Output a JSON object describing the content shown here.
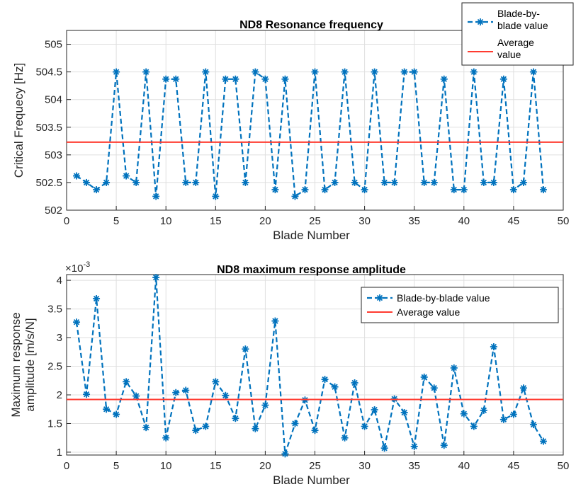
{
  "colors": {
    "series": "#0072BD",
    "average": "#FF3B30",
    "grid": "#DFDFDF",
    "axis": "#262626"
  },
  "chart_data": [
    {
      "type": "line",
      "title": "ND8 Resonance frequency",
      "xlabel": "Blade Number",
      "ylabel": "Critical Frequecy [Hz]",
      "xlim": [
        0,
        50
      ],
      "ylim": [
        502,
        505.25
      ],
      "xticks": [
        0,
        5,
        10,
        15,
        20,
        25,
        30,
        35,
        40,
        45,
        50
      ],
      "yticks": [
        502,
        502.5,
        503,
        503.5,
        504,
        504.5,
        505
      ],
      "xtick_labels": [
        "0",
        "5",
        "10",
        "15",
        "20",
        "25",
        "30",
        "35",
        "40",
        "45",
        "50"
      ],
      "ytick_labels": [
        "502",
        "502.5",
        "503",
        "503.5",
        "504",
        "504.5",
        "505"
      ],
      "grid": true,
      "legend_position": "top-right, outside",
      "legend": [
        "Blade-by-blade value",
        "Average value"
      ],
      "legend_lines": [
        [
          "Blade-by-",
          "blade value"
        ],
        [
          "Average",
          "value"
        ]
      ],
      "series": [
        {
          "name": "Blade-by-blade value",
          "style": "dashed line with asterisk markers",
          "x": [
            1,
            2,
            3,
            4,
            5,
            6,
            7,
            8,
            9,
            10,
            11,
            12,
            13,
            14,
            15,
            16,
            17,
            18,
            19,
            20,
            21,
            22,
            23,
            24,
            25,
            26,
            27,
            28,
            29,
            30,
            31,
            32,
            33,
            34,
            35,
            36,
            37,
            38,
            39,
            40,
            41,
            42,
            43,
            44,
            45,
            46,
            47,
            48
          ],
          "values": [
            502.62,
            502.5,
            502.37,
            502.5,
            504.5,
            502.62,
            502.5,
            504.5,
            502.25,
            504.37,
            504.37,
            502.5,
            502.5,
            504.5,
            502.25,
            504.37,
            504.37,
            502.5,
            504.5,
            504.37,
            502.37,
            504.37,
            502.25,
            502.37,
            504.5,
            502.37,
            502.5,
            504.5,
            502.5,
            502.37,
            504.5,
            502.5,
            502.5,
            504.5,
            504.5,
            502.5,
            502.5,
            504.37,
            502.37,
            502.37,
            504.5,
            502.5,
            502.5,
            504.37,
            502.37,
            502.5,
            504.5,
            502.37
          ]
        },
        {
          "name": "Average value",
          "style": "solid horizontal line",
          "value": 503.23
        }
      ]
    },
    {
      "type": "line",
      "title": "ND8 maximum response amplitude",
      "xlabel": "Blade Number",
      "ylabel": "Maximum response amplitude [m/s/N]",
      "ylabel_lines": [
        "Maximum response",
        "amplitude [m/s/N]"
      ],
      "exponent_label": "×10",
      "exponent_power": "-3",
      "xlim": [
        0,
        50
      ],
      "ylim": [
        0.95,
        4.1
      ],
      "xticks": [
        0,
        5,
        10,
        15,
        20,
        25,
        30,
        35,
        40,
        45,
        50
      ],
      "yticks": [
        1,
        1.5,
        2,
        2.5,
        3,
        3.5,
        4
      ],
      "xtick_labels": [
        "0",
        "5",
        "10",
        "15",
        "20",
        "25",
        "30",
        "35",
        "40",
        "45",
        "50"
      ],
      "ytick_labels": [
        "1",
        "1.5",
        "2",
        "2.5",
        "3",
        "3.5",
        "4"
      ],
      "grid": true,
      "legend_position": "top-right, inside",
      "legend": [
        "Blade-by-blade value",
        "Average value"
      ],
      "series": [
        {
          "name": "Blade-by-blade value",
          "style": "dashed line with asterisk markers",
          "x": [
            1,
            2,
            3,
            4,
            5,
            6,
            7,
            8,
            9,
            10,
            11,
            12,
            13,
            14,
            15,
            16,
            17,
            18,
            19,
            20,
            21,
            22,
            23,
            24,
            25,
            26,
            27,
            28,
            29,
            30,
            31,
            32,
            33,
            34,
            35,
            36,
            37,
            38,
            39,
            40,
            41,
            42,
            43,
            44,
            45,
            46,
            47,
            48
          ],
          "values": [
            3.27,
            2.01,
            3.68,
            1.75,
            1.66,
            2.23,
            1.98,
            1.43,
            4.05,
            1.25,
            2.04,
            2.08,
            1.38,
            1.45,
            2.23,
            1.99,
            1.59,
            2.8,
            1.41,
            1.82,
            3.29,
            0.97,
            1.5,
            1.91,
            1.38,
            2.27,
            2.14,
            1.25,
            2.21,
            1.45,
            1.74,
            1.07,
            1.93,
            1.69,
            1.1,
            2.31,
            2.12,
            1.12,
            2.47,
            1.67,
            1.45,
            1.73,
            2.84,
            1.57,
            1.66,
            2.12,
            1.48,
            1.19
          ]
        },
        {
          "name": "Average value",
          "style": "solid horizontal line",
          "value": 1.92
        }
      ]
    }
  ]
}
